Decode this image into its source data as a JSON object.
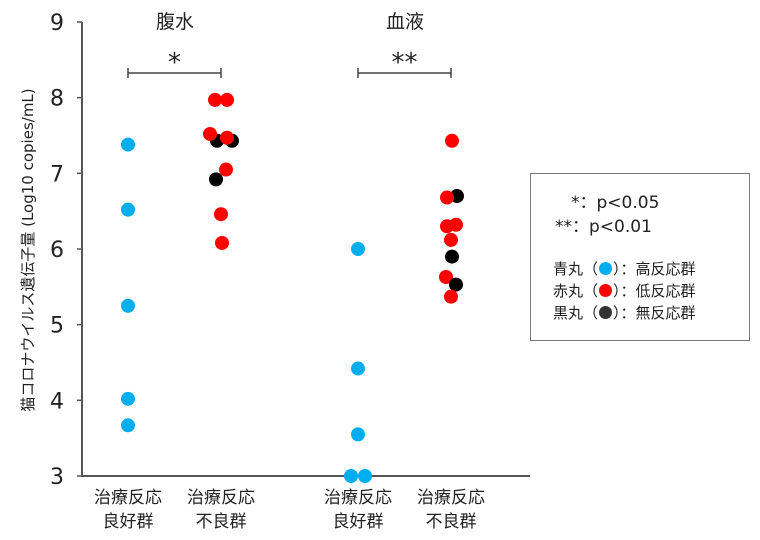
{
  "chart_data": {
    "type": "scatter",
    "title": "",
    "ylabel": "猫コロナウイルス遺伝子量 (Log10 copies/mL)",
    "ylim": [
      3,
      9
    ],
    "yticks": [
      3,
      4,
      5,
      6,
      7,
      8,
      9
    ],
    "panels": [
      {
        "title": "腹水",
        "significance": "*",
        "groups": [
          {
            "label": [
              "治療反応",
              "良好群"
            ],
            "points": [
              {
                "y": 7.38,
                "color": "blue"
              },
              {
                "y": 6.52,
                "color": "blue"
              },
              {
                "y": 5.25,
                "color": "blue"
              },
              {
                "y": 4.02,
                "color": "blue"
              },
              {
                "y": 3.67,
                "color": "blue"
              }
            ]
          },
          {
            "label": [
              "治療反応",
              "不良群"
            ],
            "points": [
              {
                "y": 7.97,
                "color": "red",
                "dx": -6
              },
              {
                "y": 7.97,
                "color": "red",
                "dx": 6
              },
              {
                "y": 7.43,
                "color": "black",
                "dx": -4
              },
              {
                "y": 7.43,
                "color": "black",
                "dx": 11
              },
              {
                "y": 7.52,
                "color": "red",
                "dx": -11
              },
              {
                "y": 7.47,
                "color": "red",
                "dx": 6
              },
              {
                "y": 7.05,
                "color": "red",
                "dx": 5
              },
              {
                "y": 6.92,
                "color": "black",
                "dx": -5
              },
              {
                "y": 6.46,
                "color": "red",
                "dx": 0
              },
              {
                "y": 6.08,
                "color": "red",
                "dx": 1
              }
            ]
          }
        ]
      },
      {
        "title": "血液",
        "significance": "**",
        "groups": [
          {
            "label": [
              "治療反応",
              "良好群"
            ],
            "points": [
              {
                "y": 6.0,
                "color": "blue"
              },
              {
                "y": 4.42,
                "color": "blue"
              },
              {
                "y": 3.55,
                "color": "blue"
              },
              {
                "y": 3.0,
                "color": "blue",
                "dx": -7
              },
              {
                "y": 3.0,
                "color": "blue",
                "dx": 7
              }
            ]
          },
          {
            "label": [
              "治療反応",
              "不良群"
            ],
            "points": [
              {
                "y": 7.43,
                "color": "red",
                "dx": 1
              },
              {
                "y": 6.7,
                "color": "black",
                "dx": 6
              },
              {
                "y": 6.68,
                "color": "red",
                "dx": -4
              },
              {
                "y": 6.32,
                "color": "red",
                "dx": 5
              },
              {
                "y": 6.3,
                "color": "red",
                "dx": -4
              },
              {
                "y": 6.12,
                "color": "red",
                "dx": 0
              },
              {
                "y": 5.9,
                "color": "black",
                "dx": 1
              },
              {
                "y": 5.63,
                "color": "red",
                "dx": -5
              },
              {
                "y": 5.53,
                "color": "black",
                "dx": 5
              },
              {
                "y": 5.37,
                "color": "red",
                "dx": 0
              }
            ]
          }
        ]
      }
    ],
    "legend": {
      "significance": [
        "*：p<0.05",
        "**：p<0.01"
      ],
      "entries": [
        {
          "prefix": "青丸（",
          "color": "blue",
          "suffix": "）：高反応群"
        },
        {
          "prefix": "赤丸（",
          "color": "red",
          "suffix": "）：低反応群"
        },
        {
          "prefix": "黒丸（",
          "color": "black",
          "suffix": "）：無反応群"
        }
      ]
    },
    "colors": {
      "blue": "#00AEEF",
      "red": "#FF0000",
      "black": "#000000",
      "legend_black": "#333333"
    }
  }
}
